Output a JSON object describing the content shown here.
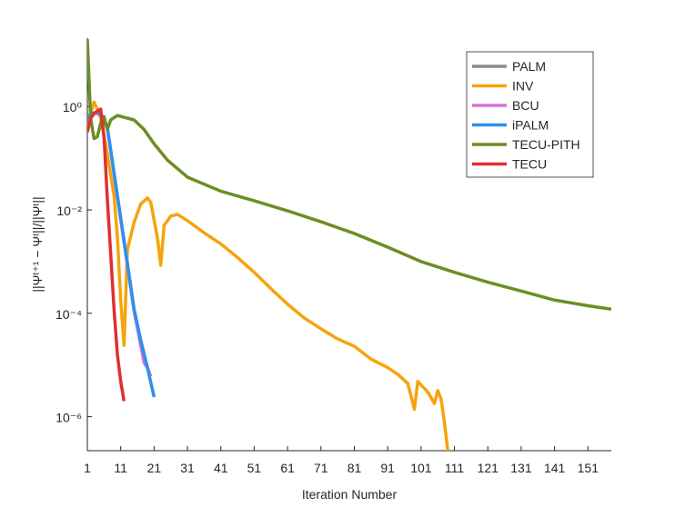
{
  "chart_data": {
    "type": "line",
    "xlabel": "Iteration Number",
    "ylabel": "||Ψᵗ⁺¹ − Ψᵗ||/||Ψᵗ||",
    "yscale": "log",
    "legend": "northeast",
    "xlim": [
      1,
      158
    ],
    "xticks": [
      1,
      11,
      21,
      31,
      41,
      51,
      61,
      71,
      81,
      91,
      101,
      111,
      121,
      131,
      141,
      151
    ],
    "ylim": [
      2.2e-07,
      21
    ],
    "yticks": [
      {
        "value": 1e-06,
        "label": "10⁻⁶"
      },
      {
        "value": 0.0001,
        "label": "10⁻⁴"
      },
      {
        "value": 0.01,
        "label": "10⁻²"
      },
      {
        "value": 1,
        "label": "10⁰"
      }
    ],
    "series": [
      {
        "name": "PALM",
        "color": "#8c8c8c",
        "x": [
          1,
          2,
          4,
          5,
          7,
          9,
          11,
          13,
          15,
          17,
          19,
          20
        ],
        "values": [
          0.59,
          0.72,
          0.78,
          0.7,
          0.39,
          0.052,
          0.0069,
          0.00092,
          0.00012,
          3e-05,
          8.9e-06,
          6e-06
        ]
      },
      {
        "name": "INV",
        "color": "#f5a40c",
        "x": [
          1,
          2,
          3,
          4,
          5,
          7,
          9,
          10,
          11,
          12,
          13,
          15,
          17,
          19,
          20,
          22,
          23,
          24,
          26,
          28,
          31,
          36,
          41,
          46,
          51,
          56,
          61,
          66,
          71,
          76,
          81,
          86,
          91,
          94,
          97,
          99,
          100,
          103,
          105,
          106,
          107,
          108,
          109
        ],
        "values": [
          0.32,
          0.72,
          1.22,
          0.89,
          0.59,
          0.12,
          0.019,
          0.0031,
          0.00018,
          2.4e-05,
          0.0017,
          0.0057,
          0.013,
          0.017,
          0.014,
          0.0029,
          0.00085,
          0.005,
          0.0076,
          0.0082,
          0.0062,
          0.0036,
          0.0022,
          0.0012,
          0.00062,
          0.0003,
          0.00015,
          8.1e-05,
          5e-05,
          3.2e-05,
          2.3e-05,
          1.3e-05,
          8.9e-06,
          6.6e-06,
          4.4e-06,
          1.4e-06,
          4.8e-06,
          3e-06,
          1.8e-06,
          3.2e-06,
          2.2e-06,
          7.8e-07,
          2.2e-07
        ]
      },
      {
        "name": "BCU",
        "color": "#d96fd6",
        "x": [
          1,
          3,
          5,
          7,
          9,
          11,
          13,
          15,
          17,
          18,
          19,
          20
        ],
        "values": [
          0.59,
          0.75,
          0.7,
          0.39,
          0.05,
          0.0065,
          0.00085,
          0.00011,
          2.4e-05,
          1.1e-05,
          8.9e-06,
          6e-06
        ]
      },
      {
        "name": "iPALM",
        "color": "#2e8ff0",
        "x": [
          1,
          2,
          4,
          5,
          7,
          9,
          11,
          13,
          15,
          17,
          19,
          21
        ],
        "values": [
          0.59,
          0.72,
          0.78,
          0.7,
          0.39,
          0.052,
          0.0069,
          0.00092,
          0.00012,
          3e-05,
          8.9e-06,
          2.4e-06
        ]
      },
      {
        "name": "TECU-PITH",
        "color": "#6b8e23",
        "x": [
          1,
          2,
          3,
          4,
          5,
          6,
          7,
          8,
          10,
          12,
          15,
          18,
          21,
          25,
          31,
          41,
          51,
          61,
          71,
          81,
          91,
          101,
          111,
          121,
          131,
          141,
          151,
          158
        ],
        "values": [
          20,
          0.59,
          0.24,
          0.26,
          0.48,
          0.64,
          0.36,
          0.55,
          0.67,
          0.62,
          0.55,
          0.36,
          0.19,
          0.092,
          0.043,
          0.023,
          0.015,
          0.0096,
          0.0059,
          0.0035,
          0.0019,
          0.001,
          0.00062,
          0.0004,
          0.00027,
          0.00018,
          0.00014,
          0.00012
        ]
      },
      {
        "name": "TECU",
        "color": "#e0302e",
        "x": [
          1,
          2,
          3,
          4,
          5,
          6,
          7,
          8,
          9,
          10,
          11,
          12
        ],
        "values": [
          0.32,
          0.59,
          0.72,
          0.82,
          0.89,
          0.26,
          0.016,
          0.0014,
          0.00012,
          1.6e-05,
          4.8e-06,
          2e-06
        ]
      }
    ]
  }
}
